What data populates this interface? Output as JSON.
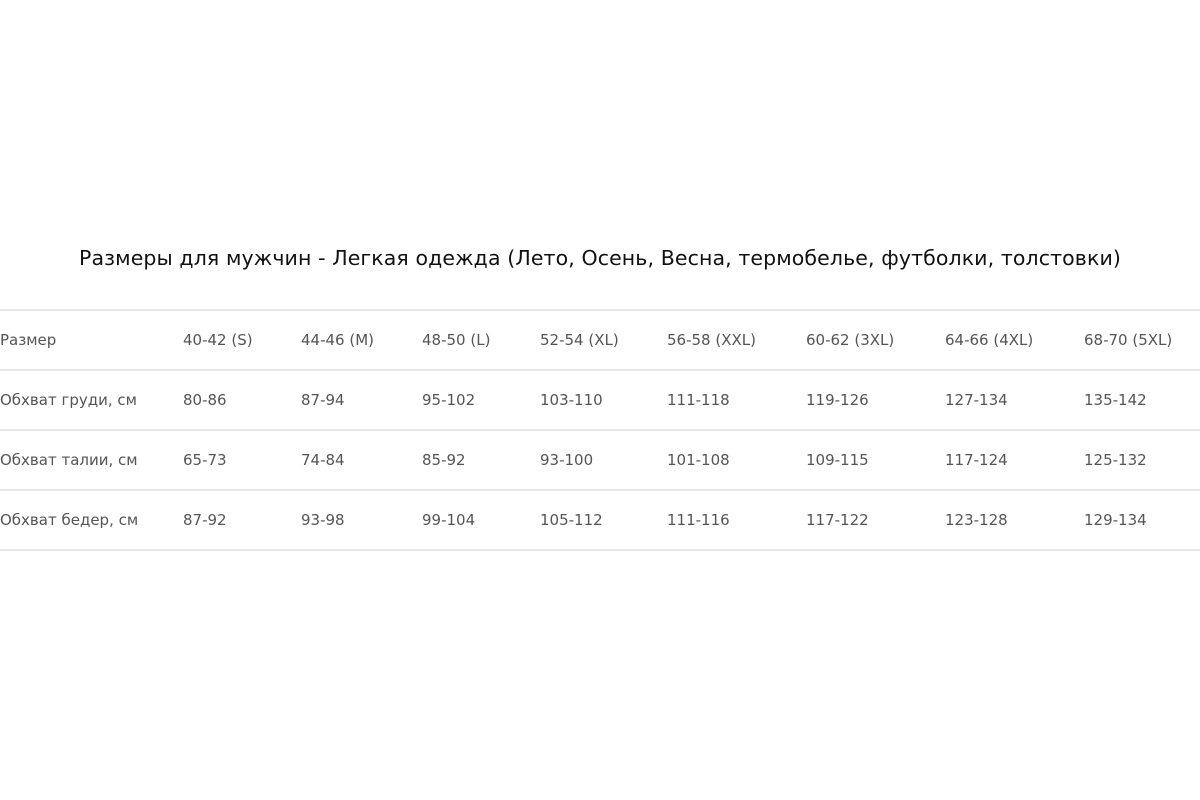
{
  "title": "Размеры для мужчин - Легкая одежда (Лето, Осень, Весна, термобелье, футболки, толстовки)",
  "rows": [
    {
      "label": "Размер",
      "values": [
        "40-42 (S)",
        "44-46 (M)",
        "48-50 (L)",
        "52-54 (XL)",
        "56-58 (XXL)",
        "60-62 (3XL)",
        "64-66 (4XL)",
        "68-70 (5XL)"
      ]
    },
    {
      "label": "Обхват груди, см",
      "values": [
        "80-86",
        "87-94",
        "95-102",
        "103-110",
        "111-118",
        "119-126",
        "127-134",
        "135-142"
      ]
    },
    {
      "label": "Обхват талии, см",
      "values": [
        "65-73",
        "74-84",
        "85-92",
        "93-100",
        "101-108",
        "109-115",
        "117-124",
        "125-132"
      ]
    },
    {
      "label": "Обхват бедер, см",
      "values": [
        "87-92",
        "93-98",
        "99-104",
        "105-112",
        "111-116",
        "117-122",
        "123-128",
        "129-134"
      ]
    }
  ]
}
